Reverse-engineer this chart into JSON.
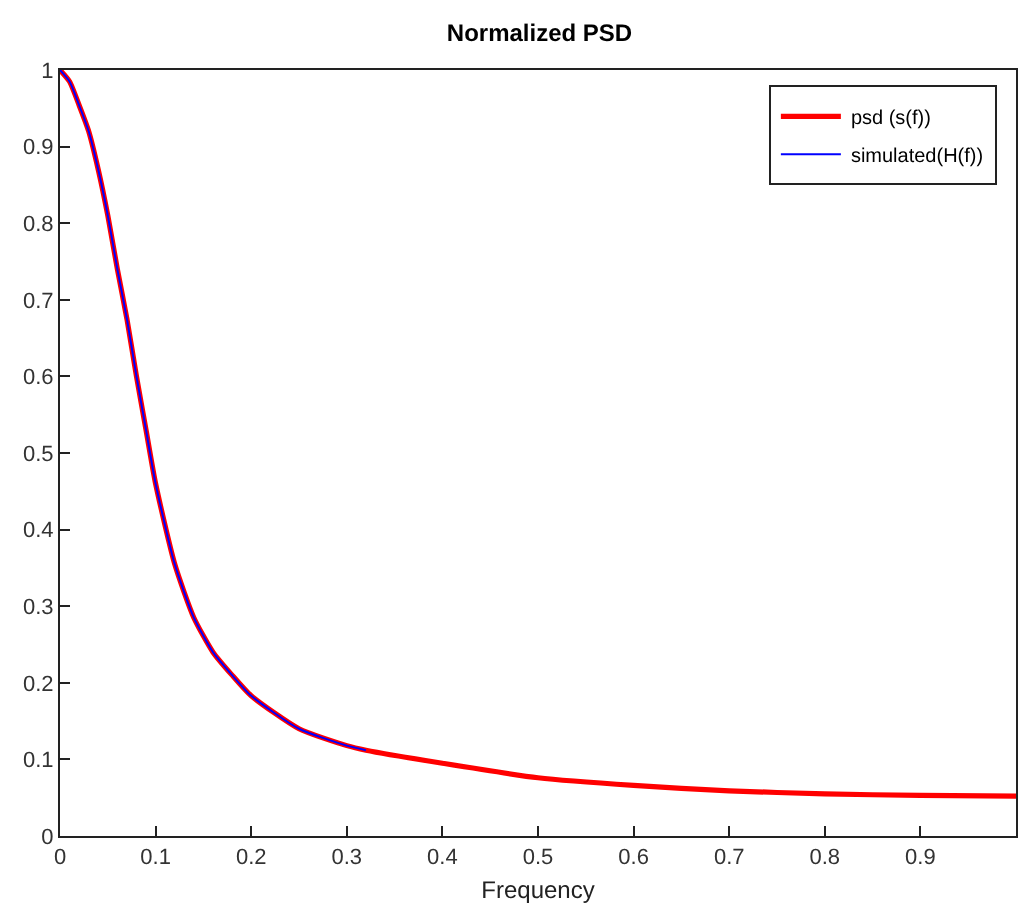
{
  "chart_data": {
    "type": "line",
    "title": "Normalized PSD",
    "xlabel": "Frequency",
    "xlim": [
      0,
      1
    ],
    "xticks": [
      0,
      0.1,
      0.2,
      0.3,
      0.4,
      0.5,
      0.6,
      0.7,
      0.8,
      0.9
    ],
    "ylim": [
      0,
      1
    ],
    "yticks": [
      0,
      0.1,
      0.2,
      0.3,
      0.4,
      0.5,
      0.6,
      0.7,
      0.8,
      0.9,
      1
    ],
    "grid": false,
    "legend": "top right",
    "marker": "none",
    "line_style": "solid",
    "series": [
      {
        "name": "psd (s(f))",
        "color": "#ff0000",
        "x": [
          0,
          0.01,
          0.02,
          0.03,
          0.04,
          0.05,
          0.06,
          0.07,
          0.08,
          0.09,
          0.1,
          0.12,
          0.14,
          0.16,
          0.18,
          0.2,
          0.25,
          0.3,
          0.32,
          0.4,
          0.5,
          0.6,
          0.7,
          0.8,
          0.9,
          1
        ],
        "values": [
          1,
          0.985,
          0.954,
          0.92,
          0.87,
          0.81,
          0.74,
          0.675,
          0.6,
          0.53,
          0.46,
          0.355,
          0.285,
          0.24,
          0.21,
          0.183,
          0.14,
          0.118,
          0.112,
          0.095,
          0.076,
          0.066,
          0.059,
          0.055,
          0.053,
          0.052
        ]
      },
      {
        "name": "simulated(H(f))",
        "color": "#0000ff",
        "x": [
          0,
          0.01,
          0.02,
          0.03,
          0.04,
          0.05,
          0.06,
          0.07,
          0.08,
          0.09,
          0.1,
          0.12,
          0.14,
          0.16,
          0.18,
          0.2,
          0.25,
          0.3,
          0.32
        ],
        "values": [
          1,
          0.985,
          0.954,
          0.92,
          0.87,
          0.81,
          0.74,
          0.675,
          0.6,
          0.53,
          0.46,
          0.355,
          0.285,
          0.24,
          0.21,
          0.183,
          0.14,
          0.118,
          0.112
        ]
      }
    ]
  }
}
